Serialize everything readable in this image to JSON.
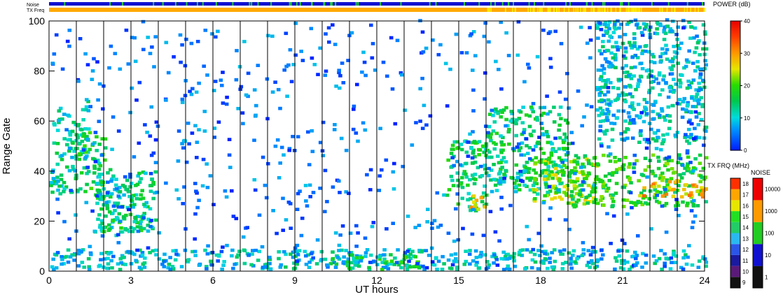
{
  "chart_data": {
    "type": "heatmap",
    "xlabel": "UT hours",
    "ylabel": "Range Gate",
    "xlim": [
      0,
      24
    ],
    "ylim": [
      0,
      100
    ],
    "x_ticks": [
      "0",
      "3",
      "6",
      "9",
      "12",
      "15",
      "18",
      "21",
      "24"
    ],
    "y_ticks": [
      "0",
      "20",
      "40",
      "60",
      "80",
      "100"
    ],
    "grid": "vertical lines every 1 UT hour",
    "top_bars": [
      {
        "label": "Noise"
      },
      {
        "label": "TX Freq"
      }
    ],
    "power_colorbar": {
      "title": "POWER (dB)",
      "ticks": [
        "0",
        "10",
        "20",
        "30",
        "40"
      ],
      "range": [
        0,
        40
      ]
    },
    "freq_colorbar": {
      "title": "TX FRQ (MHz)",
      "labels": [
        "9",
        "10",
        "11",
        "12",
        "13",
        "14",
        "15",
        "16",
        "17",
        "18"
      ]
    },
    "noise_colorbar": {
      "title": "NOISE",
      "labels": [
        "1",
        "10",
        "100",
        "1000",
        "10000"
      ]
    },
    "echo_regions": [
      {
        "x0": 0.0,
        "x1": 1.0,
        "y0": 30,
        "y1": 65,
        "power": 12
      },
      {
        "x0": 1.0,
        "x1": 1.4,
        "y0": 45,
        "y1": 68,
        "power": 11
      },
      {
        "x0": 0.9,
        "x1": 2.0,
        "y0": 28,
        "y1": 55,
        "power": 16
      },
      {
        "x0": 1.6,
        "x1": 3.9,
        "y0": 15,
        "y1": 40,
        "power": 13
      },
      {
        "x0": 1.8,
        "x1": 3.4,
        "y0": 13,
        "y1": 22,
        "power": 15
      },
      {
        "x0": 0.0,
        "x1": 24.0,
        "y0": 0,
        "y1": 8,
        "power": 10
      },
      {
        "x0": 10.0,
        "x1": 13.5,
        "y0": 0,
        "y1": 6,
        "power": 16
      },
      {
        "x0": 14.5,
        "x1": 16.0,
        "y0": 23,
        "y1": 52,
        "power": 15
      },
      {
        "x0": 15.2,
        "x1": 15.9,
        "y0": 24,
        "y1": 30,
        "power": 28
      },
      {
        "x0": 16.0,
        "x1": 19.0,
        "y0": 30,
        "y1": 65,
        "power": 14
      },
      {
        "x0": 17.6,
        "x1": 20.0,
        "y0": 26,
        "y1": 45,
        "power": 22
      },
      {
        "x0": 19.0,
        "x1": 24.0,
        "y0": 25,
        "y1": 46,
        "power": 18
      },
      {
        "x0": 21.5,
        "x1": 24.0,
        "y0": 29,
        "y1": 36,
        "power": 28
      },
      {
        "x0": 20.0,
        "x1": 24.0,
        "y0": 50,
        "y1": 100,
        "power": 10
      }
    ]
  }
}
